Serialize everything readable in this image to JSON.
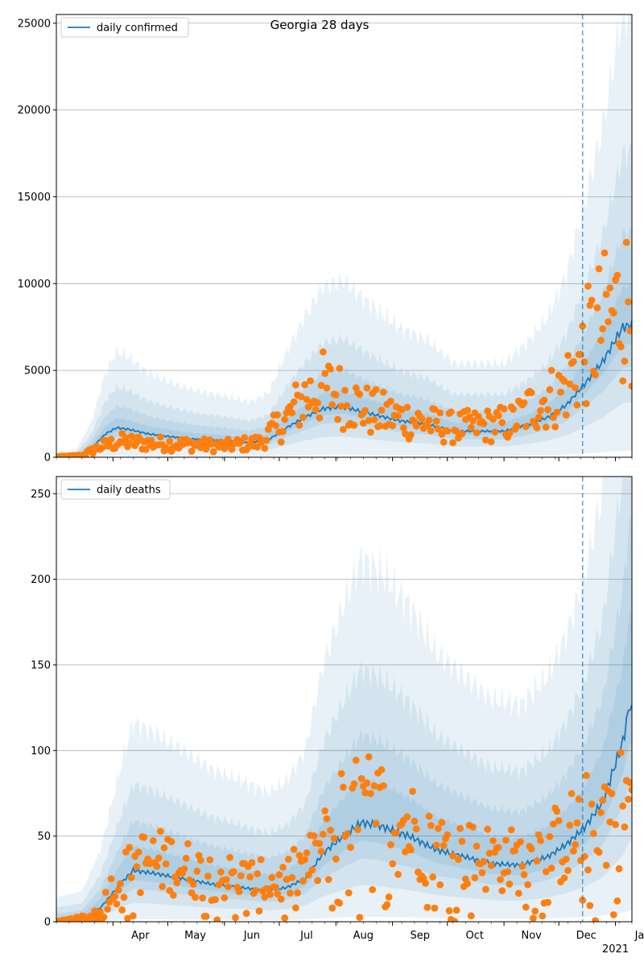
{
  "figure": {
    "title": "Georgia 28 days",
    "forecast_marker_date": "2020-12-14",
    "colors": {
      "line": "#1f77b4",
      "dots": "#ff7f0e",
      "band": "#1f77b4",
      "grid": "#b0b0b0",
      "marker": "#1f77b4"
    }
  },
  "chart_data": [
    {
      "type": "line",
      "id": "confirmed",
      "legend": "daily confirmed",
      "legend_position": "top-left",
      "x_range": [
        "2020-03-01",
        "2021-01-10"
      ],
      "ylim": [
        0,
        25500
      ],
      "y_ticks": [
        0,
        5000,
        10000,
        15000,
        20000,
        25000
      ],
      "x_tick_labels": [],
      "grid": "horizontal",
      "series": [
        {
          "name": "daily confirmed",
          "points": [
            [
              "2020-03-01",
              0
            ],
            [
              "2020-03-12",
              50
            ],
            [
              "2020-03-20",
              500
            ],
            [
              "2020-03-28",
              1350
            ],
            [
              "2020-04-03",
              1700
            ],
            [
              "2020-04-10",
              1600
            ],
            [
              "2020-04-20",
              1350
            ],
            [
              "2020-05-01",
              1200
            ],
            [
              "2020-05-15",
              1050
            ],
            [
              "2020-06-01",
              950
            ],
            [
              "2020-06-15",
              850
            ],
            [
              "2020-06-25",
              1000
            ],
            [
              "2020-07-05",
              1700
            ],
            [
              "2020-07-15",
              2300
            ],
            [
              "2020-07-25",
              2800
            ],
            [
              "2020-08-05",
              2900
            ],
            [
              "2020-08-20",
              2500
            ],
            [
              "2020-09-05",
              2100
            ],
            [
              "2020-09-20",
              1900
            ],
            [
              "2020-10-05",
              1500
            ],
            [
              "2020-10-20",
              1500
            ],
            [
              "2020-11-01",
              1500
            ],
            [
              "2020-11-15",
              1900
            ],
            [
              "2020-11-25",
              2300
            ],
            [
              "2020-12-05",
              3000
            ],
            [
              "2020-12-15",
              4200
            ],
            [
              "2020-12-25",
              5500
            ],
            [
              "2021-01-05",
              7500
            ],
            [
              "2021-01-10",
              7600
            ]
          ]
        }
      ],
      "observed_anchors": [
        [
          "2020-03-01",
          20
        ],
        [
          "2020-03-15",
          100
        ],
        [
          "2020-03-25",
          600
        ],
        [
          "2020-04-05",
          900
        ],
        [
          "2020-04-20",
          800
        ],
        [
          "2020-05-10",
          750
        ],
        [
          "2020-06-01",
          650
        ],
        [
          "2020-06-20",
          850
        ],
        [
          "2020-07-05",
          2200
        ],
        [
          "2020-07-15",
          3500
        ],
        [
          "2020-07-25",
          4000
        ],
        [
          "2020-08-05",
          3500
        ],
        [
          "2020-08-20",
          2600
        ],
        [
          "2020-09-10",
          2200
        ],
        [
          "2020-10-01",
          1700
        ],
        [
          "2020-10-20",
          1800
        ],
        [
          "2020-11-05",
          2000
        ],
        [
          "2020-11-20",
          3200
        ],
        [
          "2020-12-01",
          3600
        ],
        [
          "2020-12-10",
          5000
        ],
        [
          "2020-12-20",
          7000
        ],
        [
          "2020-12-28",
          8000
        ],
        [
          "2021-01-08",
          9000
        ]
      ],
      "band_widths": [
        0.3,
        0.7,
        1.3,
        2.4
      ]
    },
    {
      "type": "line",
      "id": "deaths",
      "legend": "daily deaths",
      "legend_position": "top-left",
      "x_range": [
        "2020-03-01",
        "2021-01-10"
      ],
      "ylim": [
        0,
        260
      ],
      "y_ticks": [
        0,
        50,
        100,
        150,
        200,
        250
      ],
      "x_tick_labels": [
        {
          "date": "2020-04-01",
          "label": "Apr"
        },
        {
          "date": "2020-05-01",
          "label": "May"
        },
        {
          "date": "2020-06-01",
          "label": "Jun"
        },
        {
          "date": "2020-07-01",
          "label": "Jul"
        },
        {
          "date": "2020-08-01",
          "label": "Aug"
        },
        {
          "date": "2020-09-01",
          "label": "Sep"
        },
        {
          "date": "2020-10-01",
          "label": "Oct"
        },
        {
          "date": "2020-11-01",
          "label": "Nov"
        },
        {
          "date": "2020-12-01",
          "label": "Dec"
        },
        {
          "date": "2021-01-01",
          "label": "Jan"
        }
      ],
      "x_year_label": "2021",
      "grid": "horizontal",
      "series": [
        {
          "name": "daily deaths",
          "points": [
            [
              "2020-03-01",
              0
            ],
            [
              "2020-03-15",
              1
            ],
            [
              "2020-03-25",
              8
            ],
            [
              "2020-04-05",
              22
            ],
            [
              "2020-04-12",
              30
            ],
            [
              "2020-04-25",
              28
            ],
            [
              "2020-05-10",
              25
            ],
            [
              "2020-05-25",
              22
            ],
            [
              "2020-06-10",
              20
            ],
            [
              "2020-06-25",
              18
            ],
            [
              "2020-07-05",
              20
            ],
            [
              "2020-07-15",
              25
            ],
            [
              "2020-07-25",
              40
            ],
            [
              "2020-08-05",
              50
            ],
            [
              "2020-08-15",
              58
            ],
            [
              "2020-08-25",
              56
            ],
            [
              "2020-09-10",
              50
            ],
            [
              "2020-09-25",
              42
            ],
            [
              "2020-10-10",
              38
            ],
            [
              "2020-10-25",
              34
            ],
            [
              "2020-11-10",
              33
            ],
            [
              "2020-11-25",
              38
            ],
            [
              "2020-12-05",
              45
            ],
            [
              "2020-12-15",
              55
            ],
            [
              "2020-12-25",
              70
            ],
            [
              "2021-01-05",
              105
            ],
            [
              "2021-01-09",
              128
            ],
            [
              "2021-01-10",
              122
            ]
          ]
        }
      ],
      "observed_anchors": [
        [
          "2020-03-01",
          0
        ],
        [
          "2020-03-20",
          3
        ],
        [
          "2020-04-01",
          20
        ],
        [
          "2020-04-15",
          35
        ],
        [
          "2020-05-01",
          35
        ],
        [
          "2020-05-20",
          28
        ],
        [
          "2020-06-10",
          25
        ],
        [
          "2020-07-01",
          22
        ],
        [
          "2020-07-20",
          35
        ],
        [
          "2020-08-05",
          60
        ],
        [
          "2020-08-20",
          65
        ],
        [
          "2020-09-10",
          55
        ],
        [
          "2020-10-01",
          40
        ],
        [
          "2020-10-20",
          38
        ],
        [
          "2020-11-10",
          35
        ],
        [
          "2020-12-01",
          45
        ],
        [
          "2020-12-20",
          60
        ],
        [
          "2021-01-08",
          70
        ]
      ],
      "band_widths": [
        0.4,
        0.8,
        1.4,
        2.4
      ]
    }
  ]
}
